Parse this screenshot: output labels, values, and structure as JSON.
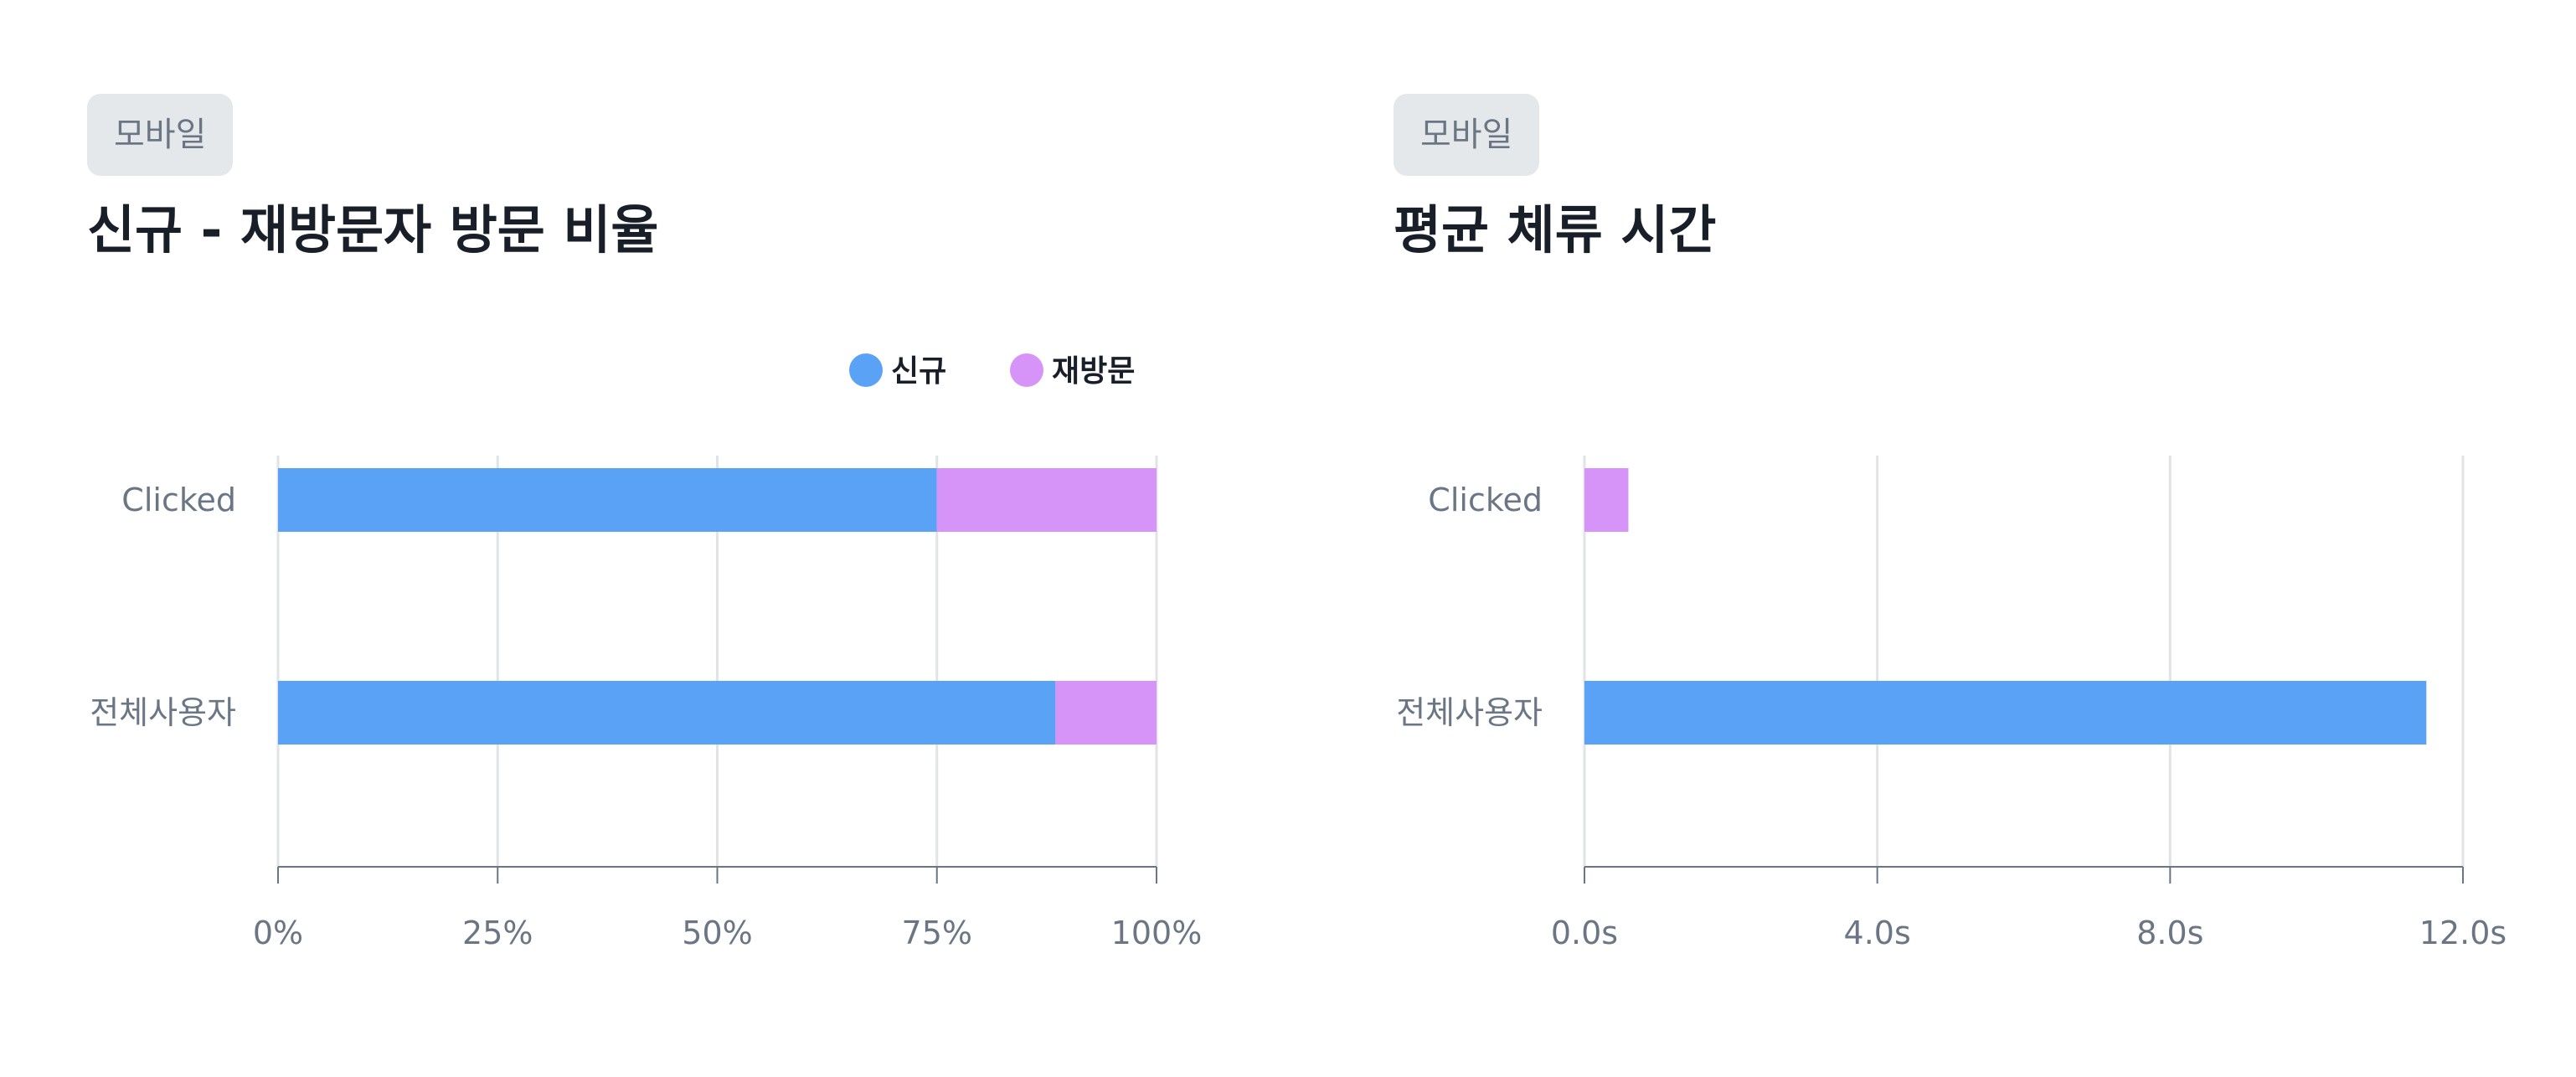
{
  "panels": [
    {
      "badge": "모바일",
      "title": "신규 - 재방문자 방문 비율"
    },
    {
      "badge": "모바일",
      "title": "평균 체류 시간"
    }
  ],
  "chart_data": [
    {
      "type": "bar",
      "orientation": "horizontal",
      "stacked": true,
      "categories": [
        "Clicked",
        "전체사용자"
      ],
      "series": [
        {
          "name": "신규",
          "color": "#5aa2f6",
          "values": [
            75,
            88.5
          ]
        },
        {
          "name": "재방문",
          "color": "#d694f8",
          "values": [
            25,
            11.5
          ]
        }
      ],
      "xlim": [
        0,
        100
      ],
      "xticks": [
        0,
        25,
        50,
        75,
        100
      ],
      "xtick_labels": [
        "0%",
        "25%",
        "50%",
        "75%",
        "100%"
      ],
      "grid": true,
      "legend": "top-right"
    },
    {
      "type": "bar",
      "orientation": "horizontal",
      "categories": [
        "Clicked",
        "전체사용자"
      ],
      "values": [
        0.6,
        11.5
      ],
      "bar_colors": [
        "#d694f8",
        "#5aa2f6"
      ],
      "xlim": [
        0,
        12
      ],
      "xticks": [
        0,
        4,
        8,
        12
      ],
      "xtick_labels": [
        "0.0s",
        "4.0s",
        "8.0s",
        "12.0s"
      ],
      "grid": true
    }
  ]
}
